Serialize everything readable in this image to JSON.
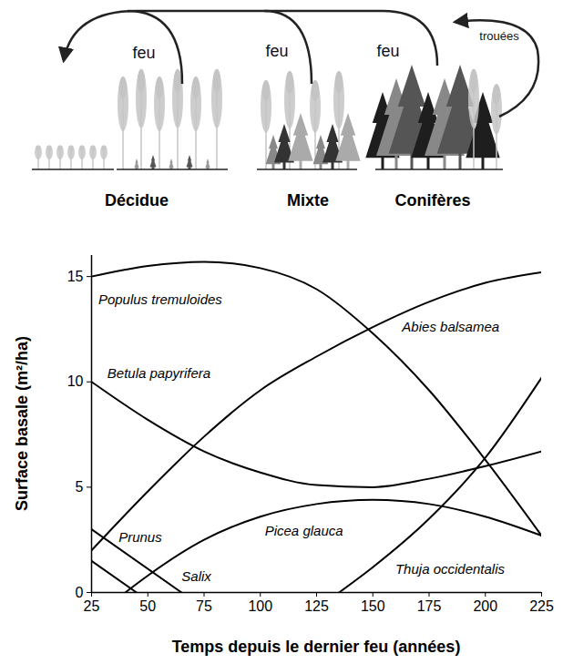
{
  "diagram": {
    "arrows": [
      {
        "label": "feu"
      },
      {
        "label": "feu"
      },
      {
        "label": "feu"
      },
      {
        "label": "trouées"
      }
    ],
    "stands": [
      "Décidue",
      "Mixte",
      "Conifères"
    ]
  },
  "chart_data": {
    "type": "line",
    "x_label": "Temps depuis le dernier feu (années)",
    "y_label": "Surface basale (m²/ha)",
    "xlim": [
      25,
      225
    ],
    "xticks": [
      25,
      50,
      75,
      100,
      125,
      150,
      175,
      200,
      225
    ],
    "ylim": [
      0,
      16
    ],
    "yticks": [
      0,
      5,
      10,
      15
    ],
    "grid": false,
    "series": [
      {
        "name": "Populus tremuloides",
        "color": "#000000",
        "x": [
          25,
          50,
          75,
          100,
          125,
          150,
          175,
          200,
          225
        ],
        "values": [
          15,
          15.5,
          15.7,
          15.4,
          14.4,
          12.3,
          9.6,
          6.3,
          2.7
        ],
        "label_x": 28,
        "label_y": 13.9
      },
      {
        "name": "Betula papyrifera",
        "color": "#000000",
        "x": [
          25,
          50,
          75,
          100,
          125,
          150,
          175,
          200,
          225
        ],
        "values": [
          10,
          8.2,
          6.7,
          5.7,
          5.1,
          5.0,
          5.4,
          6.0,
          6.7
        ],
        "label_x": 32,
        "label_y": 10.4
      },
      {
        "name": "Abies balsamea",
        "color": "#000000",
        "x": [
          25,
          50,
          75,
          100,
          125,
          150,
          175,
          200,
          225
        ],
        "values": [
          2,
          4.8,
          7.4,
          9.6,
          11.2,
          12.6,
          13.8,
          14.7,
          15.2
        ],
        "label_x": 163,
        "label_y": 12.6
      },
      {
        "name": "Picea glauca",
        "color": "#000000",
        "x": [
          40,
          50,
          75,
          100,
          125,
          150,
          175,
          200,
          225
        ],
        "values": [
          0,
          0.8,
          2.5,
          3.6,
          4.2,
          4.4,
          4.2,
          3.6,
          2.7
        ],
        "label_x": 102,
        "label_y": 2.9
      },
      {
        "name": "Thuja occidentalis",
        "color": "#000000",
        "x": [
          135,
          150,
          175,
          200,
          225
        ],
        "values": [
          0,
          1.2,
          3.5,
          6.4,
          10.2
        ],
        "label_x": 160,
        "label_y": 1.1
      },
      {
        "name": "Prunus",
        "color": "#000000",
        "x": [
          25,
          45
        ],
        "values": [
          1.5,
          0
        ],
        "label_x": 37,
        "label_y": 2.6
      },
      {
        "name": "Salix",
        "color": "#000000",
        "x": [
          25,
          65
        ],
        "values": [
          3,
          0
        ],
        "label_x": 65,
        "label_y": 0.75
      }
    ]
  }
}
